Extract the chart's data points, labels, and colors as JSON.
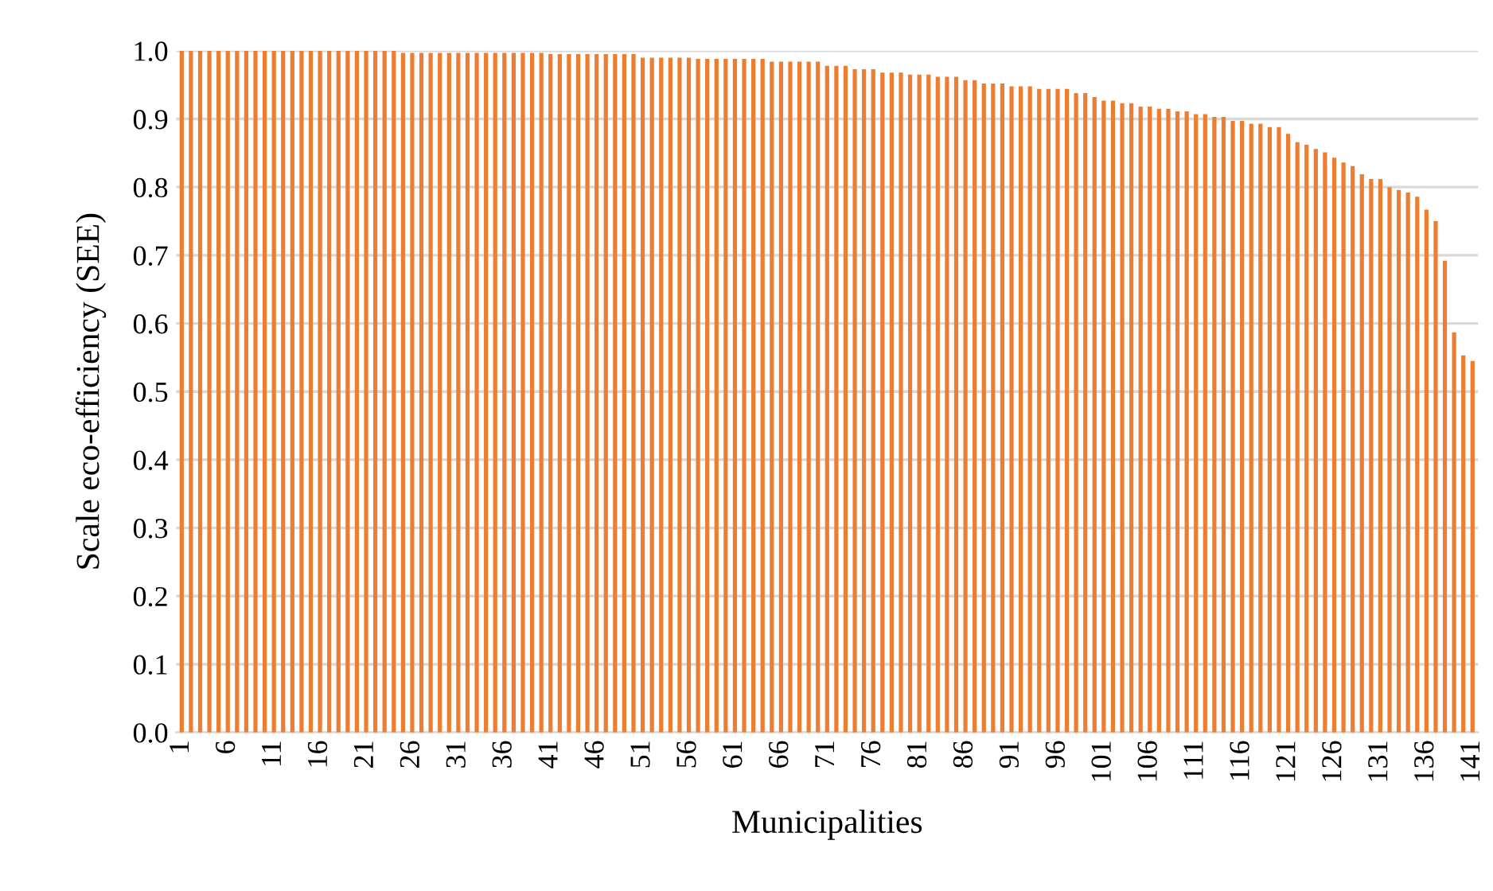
{
  "chart_data": {
    "type": "bar",
    "xlabel": "Municipalities",
    "ylabel": "Scale eco-efficiency (SEE)",
    "categories": [
      "1",
      null,
      null,
      null,
      null,
      "6",
      null,
      null,
      null,
      null,
      "11",
      null,
      null,
      null,
      null,
      "16",
      null,
      null,
      null,
      null,
      "21",
      null,
      null,
      null,
      null,
      "26",
      null,
      null,
      null,
      null,
      "31",
      null,
      null,
      null,
      null,
      "36",
      null,
      null,
      null,
      null,
      "41",
      null,
      null,
      null,
      null,
      "46",
      null,
      null,
      null,
      null,
      "51",
      null,
      null,
      null,
      null,
      "56",
      null,
      null,
      null,
      null,
      "61",
      null,
      null,
      null,
      null,
      "66",
      null,
      null,
      null,
      null,
      "71",
      null,
      null,
      null,
      null,
      "76",
      null,
      null,
      null,
      null,
      "81",
      null,
      null,
      null,
      null,
      "86",
      null,
      null,
      null,
      null,
      "91",
      null,
      null,
      null,
      null,
      "96",
      null,
      null,
      null,
      null,
      "101",
      null,
      null,
      null,
      null,
      "106",
      null,
      null,
      null,
      null,
      "111",
      null,
      null,
      null,
      null,
      "116",
      null,
      null,
      null,
      null,
      "121",
      null,
      null,
      null,
      null,
      "126",
      null,
      null,
      null,
      null,
      "131",
      null,
      null,
      null,
      null,
      "136",
      null,
      null,
      null,
      null,
      "141"
    ],
    "values": [
      1.0,
      1.0,
      1.0,
      1.0,
      1.0,
      1.0,
      1.0,
      1.0,
      1.0,
      1.0,
      1.0,
      1.0,
      1.0,
      1.0,
      1.0,
      1.0,
      1.0,
      1.0,
      1.0,
      1.0,
      1.0,
      1.0,
      1.0,
      1.0,
      0.997,
      0.997,
      0.997,
      0.997,
      0.997,
      0.997,
      0.997,
      0.997,
      0.997,
      0.997,
      0.997,
      0.997,
      0.997,
      0.997,
      0.997,
      0.997,
      0.995,
      0.995,
      0.995,
      0.995,
      0.995,
      0.995,
      0.995,
      0.995,
      0.995,
      0.995,
      0.99,
      0.99,
      0.99,
      0.99,
      0.99,
      0.99,
      0.988,
      0.988,
      0.988,
      0.988,
      0.988,
      0.988,
      0.988,
      0.988,
      0.984,
      0.984,
      0.984,
      0.984,
      0.984,
      0.984,
      0.978,
      0.978,
      0.978,
      0.973,
      0.973,
      0.973,
      0.968,
      0.968,
      0.968,
      0.965,
      0.965,
      0.965,
      0.962,
      0.962,
      0.962,
      0.957,
      0.957,
      0.952,
      0.952,
      0.952,
      0.948,
      0.948,
      0.948,
      0.944,
      0.944,
      0.944,
      0.944,
      0.938,
      0.938,
      0.932,
      0.927,
      0.927,
      0.923,
      0.923,
      0.918,
      0.918,
      0.915,
      0.915,
      0.911,
      0.911,
      0.907,
      0.907,
      0.903,
      0.903,
      0.897,
      0.897,
      0.893,
      0.893,
      0.888,
      0.888,
      0.878,
      0.866,
      0.862,
      0.856,
      0.851,
      0.843,
      0.836,
      0.831,
      0.819,
      0.812,
      0.812,
      0.8,
      0.796,
      0.792,
      0.786,
      0.767,
      0.75,
      0.692,
      0.587,
      0.553,
      0.545
    ],
    "color": "#ed7d31",
    "ylim": [
      0,
      1.0
    ],
    "yticks": [
      {
        "value": 0,
        "label": "0.0"
      },
      {
        "value": 0.1,
        "label": "0.1"
      },
      {
        "value": 0.2,
        "label": "0.2"
      },
      {
        "value": 0.3,
        "label": "0.3"
      },
      {
        "value": 0.4,
        "label": "0.4"
      },
      {
        "value": 0.5,
        "label": "0.5"
      },
      {
        "value": 0.6,
        "label": "0.6"
      },
      {
        "value": 0.7,
        "label": "0.7"
      },
      {
        "value": 0.8,
        "label": "0.8"
      },
      {
        "value": 0.9,
        "label": "0.9"
      },
      {
        "value": 1.0,
        "label": "1.0"
      }
    ],
    "grid": "y",
    "legend": false
  }
}
